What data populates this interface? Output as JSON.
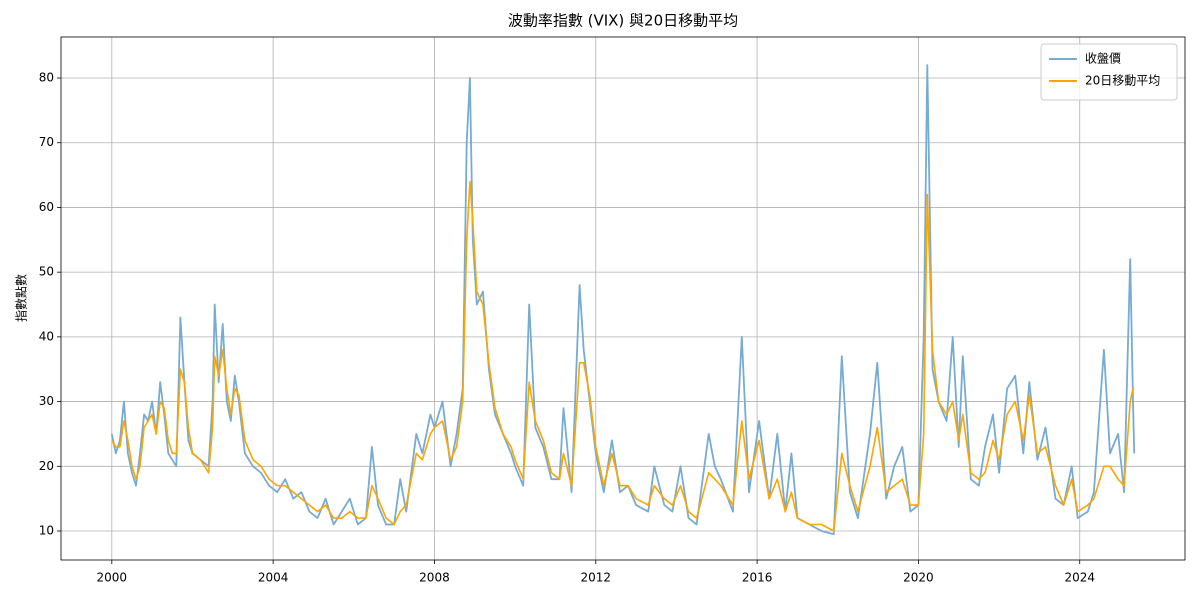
{
  "chart_data": {
    "type": "line",
    "title": "波動率指數 (VIX) 與20日移動平均",
    "ylabel": "指數點數",
    "x": [
      2000.0,
      2000.1,
      2000.2,
      2000.3,
      2000.4,
      2000.5,
      2000.6,
      2000.7,
      2000.8,
      2000.9,
      2001.0,
      2001.1,
      2001.2,
      2001.3,
      2001.4,
      2001.5,
      2001.6,
      2001.7,
      2001.8,
      2001.9,
      2002.0,
      2002.2,
      2002.4,
      2002.5,
      2002.55,
      2002.65,
      2002.75,
      2002.85,
      2002.95,
      2003.05,
      2003.15,
      2003.3,
      2003.5,
      2003.7,
      2003.9,
      2004.1,
      2004.3,
      2004.5,
      2004.7,
      2004.9,
      2005.1,
      2005.3,
      2005.5,
      2005.7,
      2005.9,
      2006.1,
      2006.3,
      2006.45,
      2006.6,
      2006.8,
      2007.0,
      2007.15,
      2007.3,
      2007.55,
      2007.7,
      2007.9,
      2008.0,
      2008.2,
      2008.4,
      2008.55,
      2008.7,
      2008.8,
      2008.88,
      2008.95,
      2009.05,
      2009.2,
      2009.35,
      2009.5,
      2009.7,
      2009.9,
      2010.0,
      2010.2,
      2010.35,
      2010.5,
      2010.7,
      2010.9,
      2011.1,
      2011.2,
      2011.4,
      2011.6,
      2011.7,
      2011.85,
      2012.0,
      2012.2,
      2012.4,
      2012.6,
      2012.8,
      2013.0,
      2013.3,
      2013.45,
      2013.7,
      2013.9,
      2014.1,
      2014.3,
      2014.5,
      2014.8,
      2014.95,
      2015.1,
      2015.4,
      2015.62,
      2015.8,
      2016.05,
      2016.3,
      2016.5,
      2016.7,
      2016.85,
      2017.0,
      2017.3,
      2017.6,
      2017.9,
      2018.1,
      2018.3,
      2018.5,
      2018.8,
      2018.98,
      2019.2,
      2019.4,
      2019.6,
      2019.8,
      2020.0,
      2020.13,
      2020.22,
      2020.35,
      2020.5,
      2020.7,
      2020.85,
      2021.0,
      2021.1,
      2021.3,
      2021.5,
      2021.65,
      2021.85,
      2022.0,
      2022.2,
      2022.4,
      2022.6,
      2022.75,
      2022.95,
      2023.15,
      2023.4,
      2023.6,
      2023.8,
      2023.95,
      2024.2,
      2024.35,
      2024.6,
      2024.75,
      2024.95,
      2025.1,
      2025.25,
      2025.32,
      2025.35
    ],
    "series": [
      {
        "name": "收盤價",
        "color": "#76abd3",
        "values": [
          25,
          22,
          24,
          30,
          22,
          19,
          17,
          22,
          28,
          27,
          30,
          25,
          33,
          28,
          22,
          21,
          20,
          43,
          33,
          24,
          22,
          21,
          20,
          30,
          45,
          33,
          42,
          30,
          27,
          34,
          30,
          22,
          20,
          19,
          17,
          16,
          18,
          15,
          16,
          13,
          12,
          15,
          11,
          13,
          15,
          11,
          12,
          23,
          14,
          11,
          11,
          18,
          13,
          25,
          22,
          28,
          26,
          30,
          20,
          25,
          32,
          70,
          80,
          55,
          45,
          47,
          35,
          28,
          25,
          22,
          20,
          17,
          45,
          26,
          23,
          18,
          18,
          29,
          16,
          48,
          38,
          30,
          22,
          16,
          24,
          16,
          17,
          14,
          13,
          20,
          14,
          13,
          20,
          12,
          11,
          25,
          20,
          18,
          13,
          40,
          16,
          27,
          15,
          25,
          13,
          22,
          12,
          11,
          10,
          9.5,
          37,
          16,
          12,
          25,
          36,
          15,
          20,
          23,
          13,
          14,
          40,
          82,
          35,
          30,
          27,
          40,
          23,
          37,
          18,
          17,
          23,
          28,
          19,
          32,
          34,
          22,
          33,
          21,
          26,
          15,
          14,
          20,
          12,
          13,
          16,
          38,
          22,
          25,
          16,
          52,
          30,
          22
        ]
      },
      {
        "name": "20日移動平均",
        "color": "#ffa500",
        "values": [
          24,
          23,
          23,
          27,
          24,
          20,
          18,
          20,
          26,
          27,
          28,
          25,
          30,
          29,
          24,
          22,
          22,
          35,
          33,
          26,
          22,
          21,
          19,
          26,
          37,
          34,
          38,
          32,
          28,
          32,
          31,
          24,
          21,
          20,
          18,
          17,
          17,
          16,
          15,
          14,
          13,
          14,
          12,
          12,
          13,
          12,
          12,
          17,
          15,
          12,
          11,
          13,
          14,
          22,
          21,
          25,
          26,
          27,
          21,
          23,
          30,
          55,
          64,
          58,
          47,
          45,
          36,
          29,
          25,
          23,
          21,
          18,
          33,
          27,
          24,
          19,
          18,
          22,
          17,
          36,
          36,
          31,
          23,
          17,
          22,
          17,
          17,
          15,
          14,
          17,
          15,
          14,
          17,
          13,
          12,
          19,
          18,
          17,
          14,
          27,
          18,
          24,
          15,
          18,
          13,
          16,
          12,
          11,
          11,
          10,
          22,
          17,
          13,
          20,
          26,
          16,
          17,
          18,
          14,
          14,
          25,
          62,
          38,
          30,
          28,
          30,
          24,
          28,
          19,
          18,
          19,
          24,
          21,
          28,
          30,
          24,
          31,
          22,
          23,
          17,
          14,
          18,
          13,
          14,
          15,
          20,
          20,
          18,
          17,
          30,
          32,
          32
        ]
      }
    ],
    "xlim": [
      1998.74,
      2026.61
    ],
    "xticks": [
      2000,
      2004,
      2008,
      2012,
      2016,
      2020,
      2024
    ],
    "ylim": [
      5.52,
      86.34
    ],
    "yticks": [
      10,
      20,
      30,
      40,
      50,
      60,
      70,
      80
    ],
    "grid": true,
    "legend": "upper right"
  }
}
